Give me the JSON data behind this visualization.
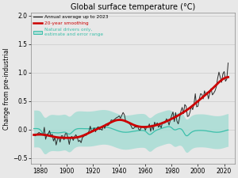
{
  "title": "Global surface temperature (°C)",
  "ylabel": "Change from pre-industrial",
  "xlim": [
    1873,
    2028
  ],
  "ylim": [
    -0.6,
    2.05
  ],
  "xticks": [
    1880,
    1900,
    1920,
    1940,
    1960,
    1980,
    2000,
    2020
  ],
  "yticks": [
    -0.5,
    0.0,
    0.5,
    1.0,
    1.5,
    2.0
  ],
  "background_color": "#e8e8e8",
  "plot_bg_color": "#e8e8e8",
  "legend_annual_label": "Annual average up to 2023",
  "legend_smooth_label": "20-year smoothing",
  "legend_natural_label": "Natural drivers only,\nestimate and error range",
  "annual_color": "#222222",
  "smooth_color": "#cc0000",
  "natural_color": "#3bbfaa",
  "natural_fill_color": "#a8ddd5"
}
